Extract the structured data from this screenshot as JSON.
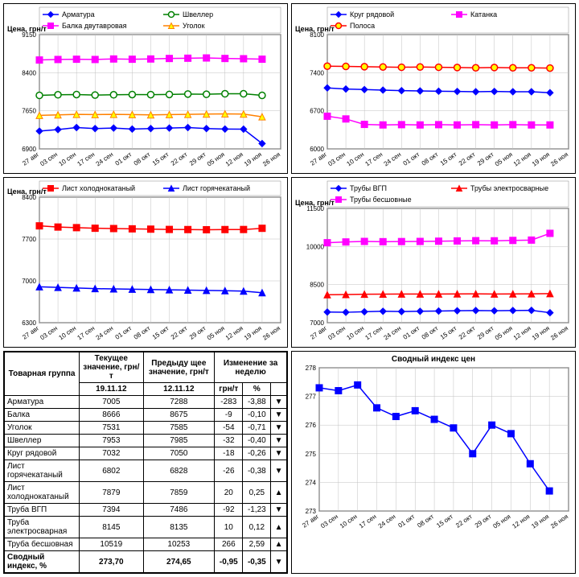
{
  "x_labels": [
    "27 авг",
    "03 сен",
    "10 сен",
    "17 сен",
    "24 сен",
    "01 окт",
    "08 окт",
    "15 окт",
    "22 окт",
    "29 окт",
    "05 ноя",
    "12 ноя",
    "19 ноя",
    "26 ноя"
  ],
  "axis_title": "Цена, грн/т",
  "axis_fontsize": 9,
  "tick_fontsize": 8,
  "legend_fontsize": 9,
  "plot_bg": "#ffffff",
  "grid_color": "#c0c0c0",
  "border_color": "#000000",
  "charts": [
    {
      "ylim": [
        6900,
        9150
      ],
      "ytick_step": 750,
      "series": [
        {
          "name": "Арматура",
          "color": "#0000ff",
          "marker": "diamond",
          "fill": "#0000ff",
          "vals": [
            7250,
            7280,
            7320,
            7300,
            7310,
            7290,
            7300,
            7310,
            7320,
            7300,
            7290,
            7288,
            7005,
            null
          ]
        },
        {
          "name": "Швеллер",
          "color": "#008000",
          "marker": "circle",
          "fill": "#ffffff",
          "vals": [
            7953,
            7965,
            7970,
            7960,
            7965,
            7970,
            7968,
            7972,
            7980,
            7975,
            7985,
            7985,
            7953,
            null
          ]
        },
        {
          "name": "Балка двутавровая",
          "color": "#ff00ff",
          "marker": "square",
          "fill": "#ff00ff",
          "vals": [
            8650,
            8660,
            8665,
            8660,
            8670,
            8665,
            8670,
            8680,
            8685,
            8690,
            8680,
            8675,
            8666,
            null
          ]
        },
        {
          "name": "Уголок",
          "color": "#ff8000",
          "marker": "triangle",
          "fill": "#ffff00",
          "vals": [
            7560,
            7570,
            7580,
            7575,
            7580,
            7575,
            7570,
            7575,
            7580,
            7585,
            7590,
            7585,
            7531,
            null
          ]
        }
      ]
    },
    {
      "ylim": [
        6000,
        8100
      ],
      "ytick_step": 700,
      "series": [
        {
          "name": "Круг рядовой",
          "color": "#0000ff",
          "marker": "diamond",
          "fill": "#0000ff",
          "vals": [
            7120,
            7100,
            7090,
            7080,
            7070,
            7065,
            7060,
            7055,
            7050,
            7055,
            7050,
            7050,
            7032,
            null
          ]
        },
        {
          "name": "Катанка",
          "color": "#ff00ff",
          "marker": "square",
          "fill": "#ff00ff",
          "vals": [
            6600,
            6550,
            6450,
            6440,
            6445,
            6440,
            6445,
            6440,
            6445,
            6440,
            6445,
            6440,
            6440,
            null
          ]
        },
        {
          "name": "Полоса",
          "color": "#ff0000",
          "marker": "circle",
          "fill": "#ffff00",
          "vals": [
            7520,
            7515,
            7510,
            7505,
            7500,
            7505,
            7500,
            7495,
            7490,
            7495,
            7490,
            7490,
            7485,
            null
          ]
        }
      ]
    },
    {
      "ylim": [
        6300,
        8400
      ],
      "ytick_step": 700,
      "series": [
        {
          "name": "Лист холоднокатаный",
          "color": "#ff0000",
          "marker": "square",
          "fill": "#ff0000",
          "vals": [
            7920,
            7900,
            7890,
            7880,
            7875,
            7870,
            7865,
            7860,
            7858,
            7855,
            7858,
            7859,
            7879,
            null
          ]
        },
        {
          "name": "Лист горячекатаный",
          "color": "#0000ff",
          "marker": "triangle",
          "fill": "#0000ff",
          "vals": [
            6900,
            6890,
            6880,
            6870,
            6865,
            6860,
            6855,
            6850,
            6845,
            6840,
            6835,
            6828,
            6802,
            null
          ]
        }
      ]
    },
    {
      "ylim": [
        7000,
        11500
      ],
      "ytick_step": 1500,
      "series": [
        {
          "name": "Трубы ВГП",
          "color": "#0000ff",
          "marker": "diamond",
          "fill": "#0000ff",
          "vals": [
            7420,
            7410,
            7430,
            7450,
            7440,
            7450,
            7460,
            7470,
            7480,
            7470,
            7480,
            7486,
            7394,
            null
          ]
        },
        {
          "name": "Трубы электросварные",
          "color": "#ff0000",
          "marker": "triangle",
          "fill": "#ff0000",
          "vals": [
            8100,
            8110,
            8120,
            8125,
            8130,
            8128,
            8130,
            8132,
            8135,
            8130,
            8132,
            8135,
            8145,
            null
          ]
        },
        {
          "name": "Трубы бесшовные",
          "color": "#ff00ff",
          "marker": "square",
          "fill": "#ff00ff",
          "vals": [
            10150,
            10180,
            10200,
            10190,
            10195,
            10200,
            10210,
            10220,
            10230,
            10225,
            10240,
            10253,
            10519,
            null
          ]
        }
      ]
    }
  ],
  "index_chart": {
    "title": "Сводный индекс цен",
    "ylim": [
      273,
      278
    ],
    "ytick_step": 1,
    "color": "#0000ff",
    "marker": "square",
    "fill": "#0000ff",
    "vals": [
      277.3,
      277.2,
      277.4,
      276.6,
      276.3,
      276.5,
      276.2,
      275.9,
      275.0,
      276.0,
      275.7,
      274.65,
      273.7,
      null
    ]
  },
  "table": {
    "headers": {
      "group": "Товарная группа",
      "current": "Текущее значение, грн/т",
      "prev": "Предыду щее значение, грн/т",
      "change": "Изменение за неделю",
      "date_cur": "19.11.12",
      "date_prev": "12.11.12",
      "unit": "грн/т",
      "pct": "%"
    },
    "rows": [
      {
        "name": "Арматура",
        "cur": "7005",
        "prev": "7288",
        "d": "-283",
        "pct": "-3,88",
        "dir": "down"
      },
      {
        "name": "Балка",
        "cur": "8666",
        "prev": "8675",
        "d": "-9",
        "pct": "-0,10",
        "dir": "down"
      },
      {
        "name": "Уголок",
        "cur": "7531",
        "prev": "7585",
        "d": "-54",
        "pct": "-0,71",
        "dir": "down"
      },
      {
        "name": "Швеллер",
        "cur": "7953",
        "prev": "7985",
        "d": "-32",
        "pct": "-0,40",
        "dir": "down"
      },
      {
        "name": "Круг рядовой",
        "cur": "7032",
        "prev": "7050",
        "d": "-18",
        "pct": "-0,26",
        "dir": "down"
      },
      {
        "name": "Лист горячекатаный",
        "cur": "6802",
        "prev": "6828",
        "d": "-26",
        "pct": "-0,38",
        "dir": "down"
      },
      {
        "name": "Лист холоднокатаный",
        "cur": "7879",
        "prev": "7859",
        "d": "20",
        "pct": "0,25",
        "dir": "up"
      },
      {
        "name": "Труба ВГП",
        "cur": "7394",
        "prev": "7486",
        "d": "-92",
        "pct": "-1,23",
        "dir": "down"
      },
      {
        "name": "Труба электросварная",
        "cur": "8145",
        "prev": "8135",
        "d": "10",
        "pct": "0,12",
        "dir": "up"
      },
      {
        "name": "Труба бесшовная",
        "cur": "10519",
        "prev": "10253",
        "d": "266",
        "pct": "2,59",
        "dir": "up"
      }
    ],
    "summary": {
      "name": "Сводный индекс, %",
      "cur": "273,70",
      "prev": "274,65",
      "d": "-0,95",
      "pct": "-0,35",
      "dir": "down"
    }
  }
}
